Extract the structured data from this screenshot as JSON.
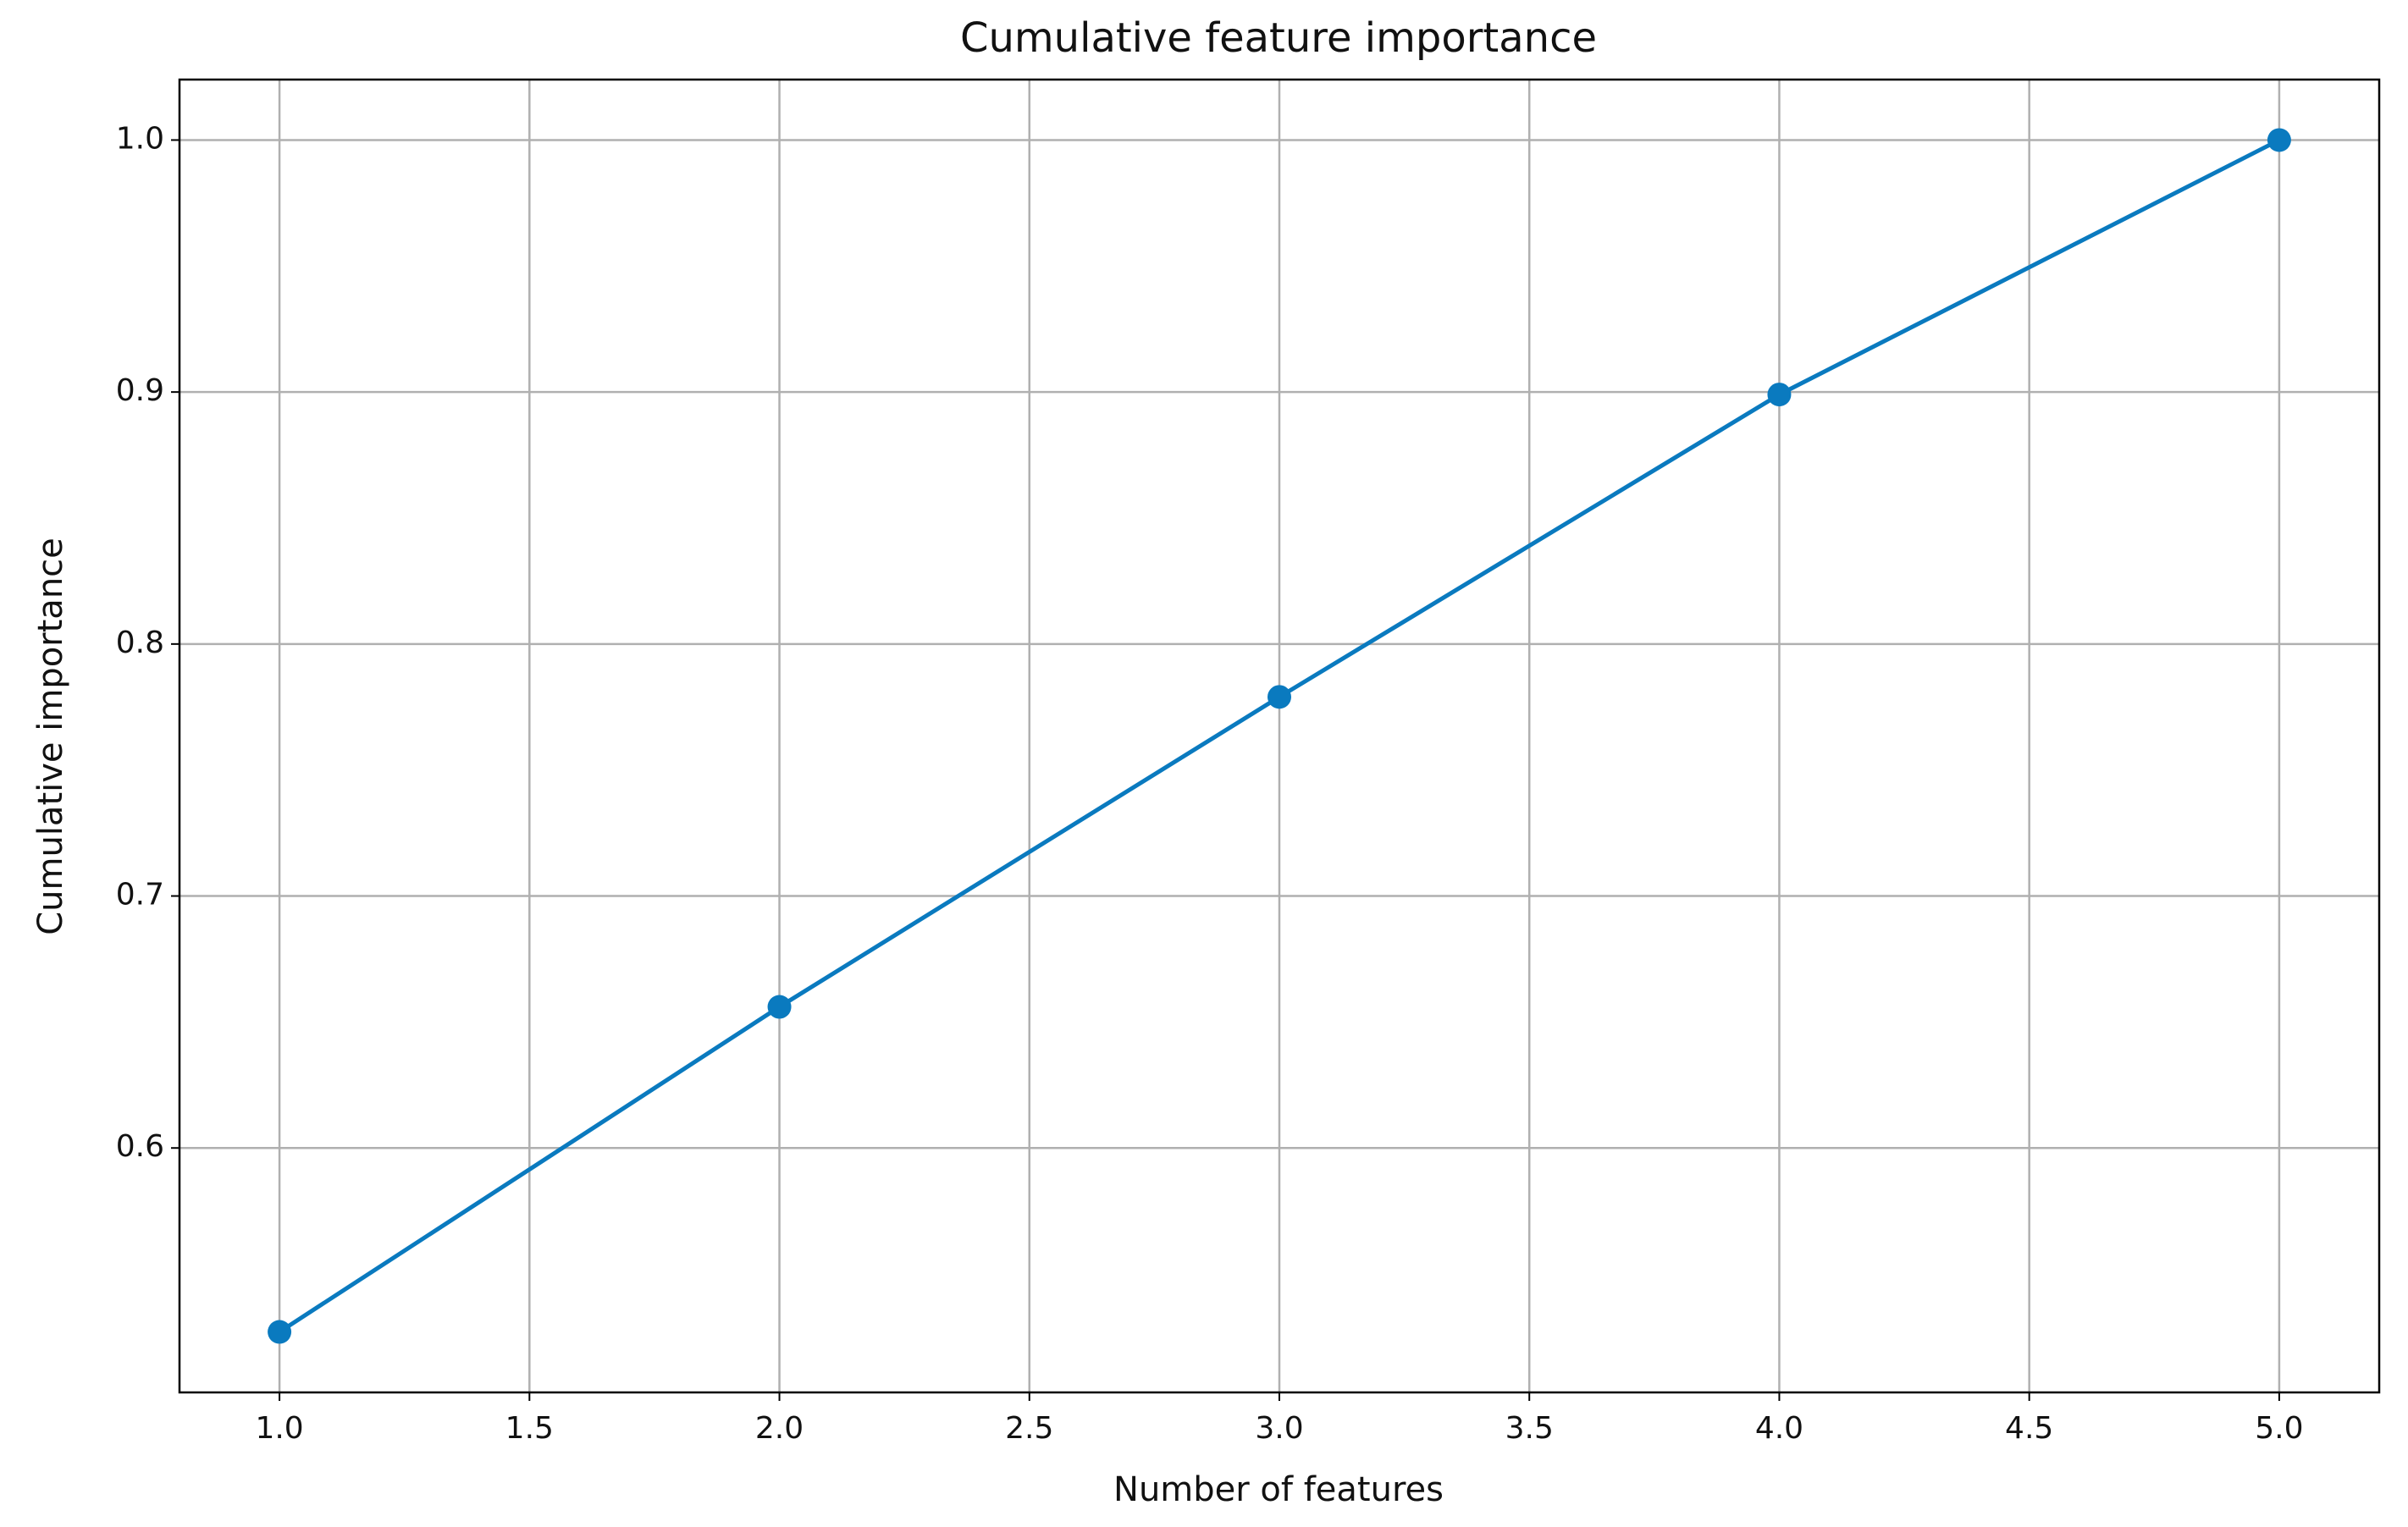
{
  "chart_data": {
    "type": "line",
    "title": "Cumulative feature importance",
    "x_label": "Number of features",
    "y_label": "Cumulative importance",
    "x": [
      1,
      2,
      3,
      4,
      5
    ],
    "series": [
      {
        "color": "#0a7abf",
        "values": [
          0.527,
          0.656,
          0.779,
          0.899,
          1.0
        ]
      }
    ],
    "xlim": [
      0.8,
      5.2
    ],
    "xticks": [
      {
        "value": 1,
        "label": "1.0"
      },
      1.5,
      {
        "value": 2,
        "label": "2.0"
      },
      2.5,
      {
        "value": 3,
        "label": "3.0"
      },
      3.5,
      {
        "value": 4,
        "label": "4.0"
      },
      4.5,
      {
        "value": 5,
        "label": "5.0"
      }
    ],
    "ylim": [
      0.503,
      1.024
    ],
    "yticks": [
      0.6,
      0.7,
      0.8,
      0.9,
      {
        "value": 1,
        "label": "1.0"
      }
    ],
    "grid": true,
    "markers": true
  }
}
